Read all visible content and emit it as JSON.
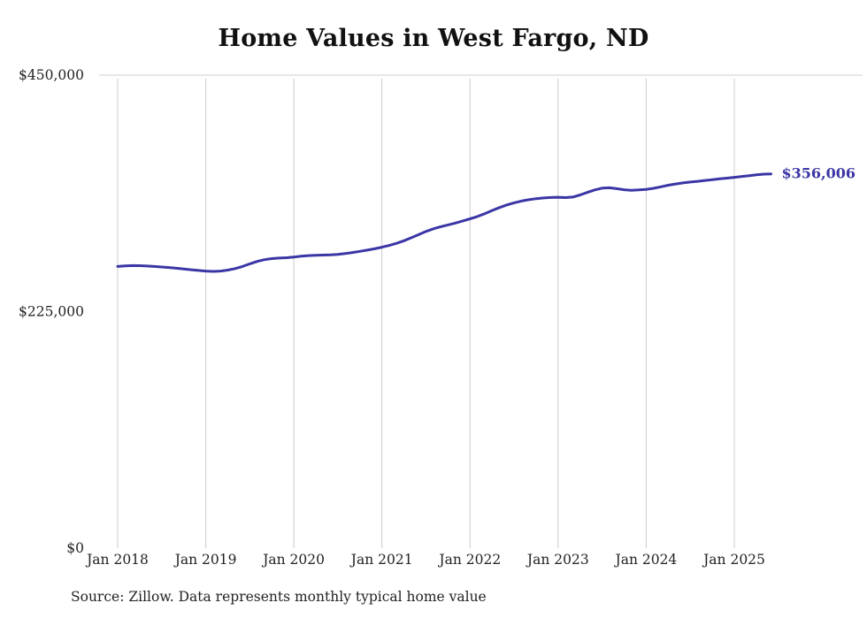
{
  "title": "Home Values in West Fargo, ND",
  "source_note": "Source: Zillow. Data represents monthly typical home value",
  "colors": {
    "line": "#3b36a5",
    "grid": "#cccccc",
    "axis_text": "#222222",
    "title_text": "#111111"
  },
  "chart_data": {
    "type": "line",
    "title": "Home Values in West Fargo, ND",
    "xlabel": "",
    "ylabel": "",
    "ylim": [
      0,
      450000
    ],
    "y_ticks": [
      {
        "value": 0,
        "label": "$0"
      },
      {
        "value": 225000,
        "label": "$225,000"
      },
      {
        "value": 450000,
        "label": "$450,000"
      }
    ],
    "x_tick_labels": [
      "Jan 2018",
      "Jan 2019",
      "Jan 2020",
      "Jan 2021",
      "Jan 2022",
      "Jan 2023",
      "Jan 2024",
      "Jan 2025"
    ],
    "x_start": "Jan 2018",
    "x_interval": "monthly",
    "grid": "vertical",
    "legend": "none",
    "final_value": 356006,
    "final_value_label": "$356,006",
    "series": [
      {
        "name": "Typical home value",
        "values": [
          268000,
          268500,
          268800,
          268700,
          268400,
          268000,
          267500,
          267000,
          266300,
          265600,
          264900,
          264200,
          263600,
          263300,
          263600,
          264500,
          266000,
          268000,
          270500,
          272800,
          274500,
          275500,
          276000,
          276300,
          277000,
          277800,
          278300,
          278600,
          278800,
          279000,
          279500,
          280300,
          281300,
          282400,
          283500,
          284800,
          286300,
          288000,
          290000,
          292500,
          295300,
          298300,
          301300,
          303800,
          305800,
          307500,
          309300,
          311300,
          313300,
          315500,
          318200,
          321200,
          324000,
          326500,
          328500,
          330200,
          331500,
          332500,
          333200,
          333600,
          333800,
          333500,
          334000,
          336000,
          338500,
          340800,
          342500,
          342800,
          342000,
          341000,
          340500,
          340800,
          341300,
          342300,
          343800,
          345300,
          346500,
          347500,
          348300,
          349000,
          349800,
          350500,
          351300,
          352000,
          352800,
          353600,
          354400,
          355200,
          355800,
          356006
        ]
      }
    ]
  }
}
